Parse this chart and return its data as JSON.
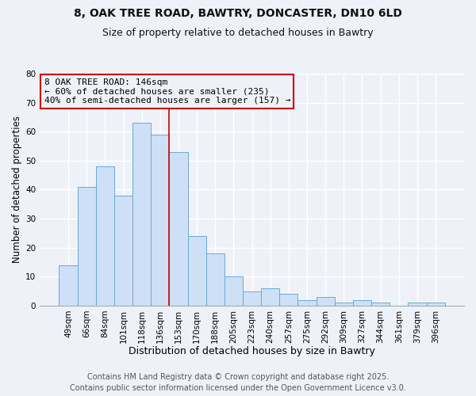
{
  "title_line1": "8, OAK TREE ROAD, BAWTRY, DONCASTER, DN10 6LD",
  "title_line2": "Size of property relative to detached houses in Bawtry",
  "xlabel": "Distribution of detached houses by size in Bawtry",
  "ylabel": "Number of detached properties",
  "categories": [
    "49sqm",
    "66sqm",
    "84sqm",
    "101sqm",
    "118sqm",
    "136sqm",
    "153sqm",
    "170sqm",
    "188sqm",
    "205sqm",
    "223sqm",
    "240sqm",
    "257sqm",
    "275sqm",
    "292sqm",
    "309sqm",
    "327sqm",
    "344sqm",
    "361sqm",
    "379sqm",
    "396sqm"
  ],
  "values": [
    14,
    41,
    48,
    38,
    63,
    59,
    53,
    24,
    18,
    10,
    5,
    6,
    4,
    2,
    3,
    1,
    2,
    1,
    0,
    1,
    1
  ],
  "bar_color": "#cde0f5",
  "bar_edge_color": "#6aaad4",
  "bar_edge_width": 0.7,
  "ylim": [
    0,
    80
  ],
  "yticks": [
    0,
    10,
    20,
    30,
    40,
    50,
    60,
    70,
    80
  ],
  "vline_x": 6.0,
  "vline_color": "#cc0000",
  "annotation_line1": "8 OAK TREE ROAD: 146sqm",
  "annotation_line2": "← 60% of detached houses are smaller (235)",
  "annotation_line3": "40% of semi-detached houses are larger (157) →",
  "annotation_box_edge_color": "#cc0000",
  "annotation_fontsize": 8,
  "footer_line1": "Contains HM Land Registry data © Crown copyright and database right 2025.",
  "footer_line2": "Contains public sector information licensed under the Open Government Licence v3.0.",
  "background_color": "#eef2f8",
  "grid_color": "#ffffff",
  "title_fontsize": 10,
  "subtitle_fontsize": 9,
  "xlabel_fontsize": 9,
  "ylabel_fontsize": 8.5,
  "tick_fontsize": 7.5,
  "footer_fontsize": 7
}
